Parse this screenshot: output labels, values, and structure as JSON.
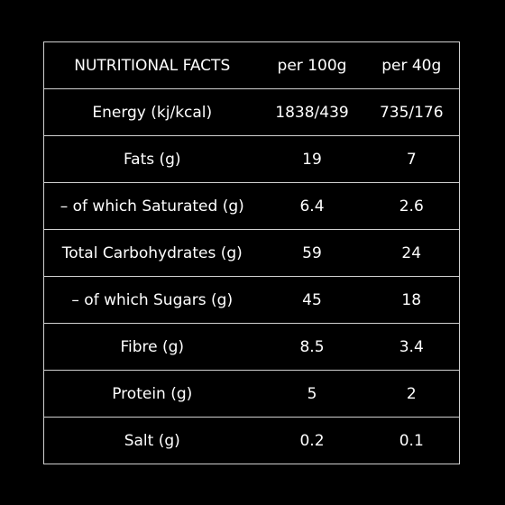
{
  "table": {
    "header": {
      "label": "NUTRITIONAL FACTS",
      "per100": "per 100g",
      "per40": "per 40g"
    },
    "rows": [
      {
        "label": "Energy (kj/kcal)",
        "per100": "1838/439",
        "per40": "735/176"
      },
      {
        "label": "Fats (g)",
        "per100": "19",
        "per40": "7"
      },
      {
        "label": "– of which Saturated (g)",
        "per100": "6.4",
        "per40": "2.6"
      },
      {
        "label": "Total Carbohydrates (g)",
        "per100": "59",
        "per40": "24"
      },
      {
        "label": "– of which Sugars (g)",
        "per100": "45",
        "per40": "18"
      },
      {
        "label": "Fibre (g)",
        "per100": "8.5",
        "per40": "3.4"
      },
      {
        "label": "Protein (g)",
        "per100": "5",
        "per40": "2"
      },
      {
        "label": "Salt (g)",
        "per100": "0.2",
        "per40": "0.1"
      }
    ]
  },
  "colors": {
    "background": "#000000",
    "text": "#ffffff",
    "border": "#d0d0d0"
  }
}
